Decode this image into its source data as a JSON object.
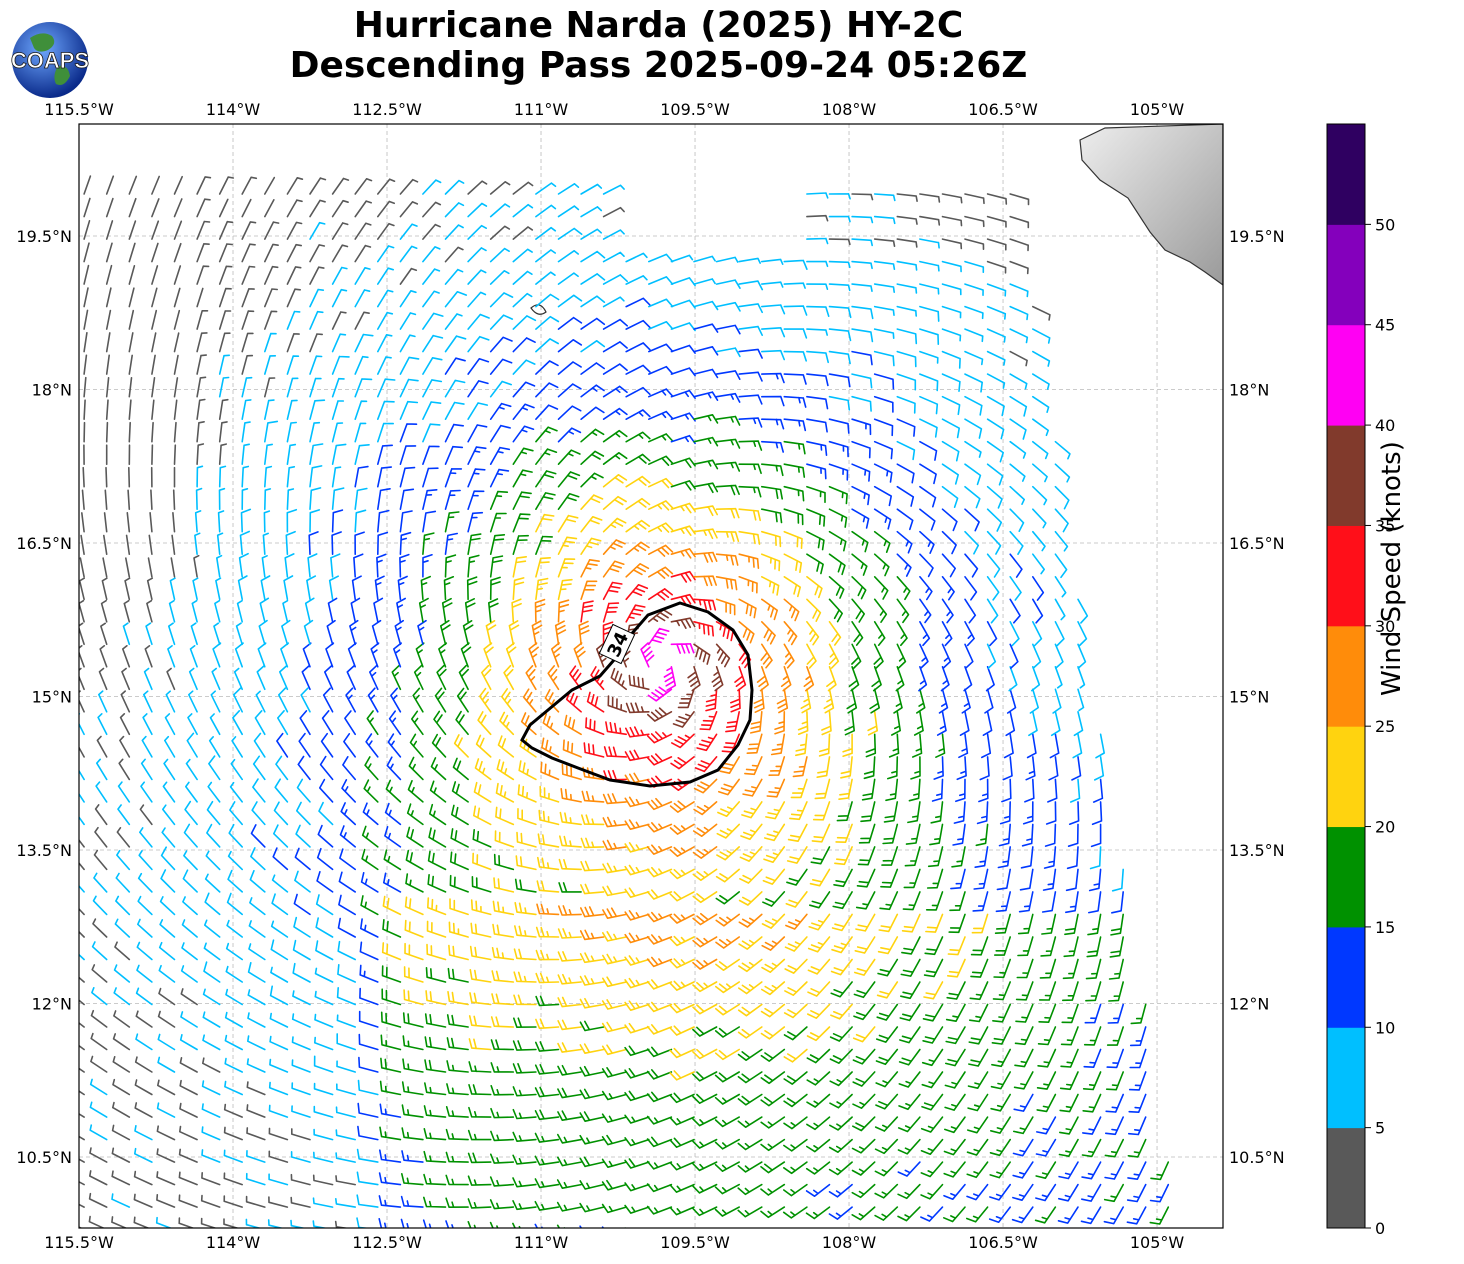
{
  "title": {
    "line1": "Hurricane Narda (2025) HY-2C",
    "line2": "Descending Pass 2025-09-24 05:26Z"
  },
  "logo": {
    "text": "COAPS",
    "icon": "globe-logo-icon"
  },
  "map": {
    "lon_range": [
      -115.5,
      -104.3
    ],
    "lat_range": [
      9.3,
      20.1
    ],
    "lon_ticks": [
      "115.5°W",
      "114°W",
      "112.5°W",
      "111°W",
      "109.5°W",
      "108°W",
      "106.5°W",
      "105°W"
    ],
    "lat_ticks": [
      "19.5°N",
      "18°N",
      "16.5°N",
      "15°N",
      "13.5°N",
      "12°N",
      "10.5°N"
    ],
    "grid": true,
    "storm_center": {
      "lon": -109.8,
      "lat": 15.3
    },
    "contour_label": "34"
  },
  "colorbar": {
    "title": "Wind Speed (knots)",
    "ticks": [
      "0",
      "5",
      "10",
      "15",
      "20",
      "25",
      "30",
      "35",
      "40",
      "45",
      "50"
    ],
    "colors": [
      "#595959",
      "#00bfff",
      "#0038ff",
      "#009100",
      "#ffd30f",
      "#ff8c0a",
      "#ff0f19",
      "#813a2c",
      "#ff00f3",
      "#8400bc",
      "#2f0061"
    ]
  }
}
